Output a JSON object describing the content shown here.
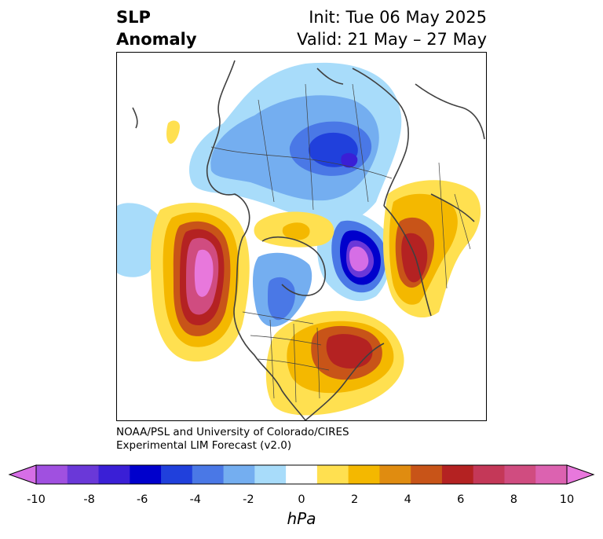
{
  "title": {
    "left_line1": "SLP",
    "left_line2": "Anomaly",
    "init": "Init: Tue 06 May 2025",
    "valid": "Valid: 21 May – 27 May"
  },
  "credit": {
    "line1": "NOAA/PSL and University of Colorado/CIRES",
    "line2": "Experimental LIM Forecast (v2.0)"
  },
  "colorbar": {
    "unit": "hPa",
    "tick_labels": [
      "-10",
      "-8",
      "-6",
      "-4",
      "-2",
      "0",
      "2",
      "4",
      "6",
      "8",
      "10"
    ],
    "colors": [
      "#d66ee6",
      "#a050e0",
      "#6a38d8",
      "#3a1fd6",
      "#0000cc",
      "#2040dc",
      "#4a78e6",
      "#74aef0",
      "#a8dcfa",
      "#ffffff",
      "#ffe050",
      "#f4b800",
      "#e08c10",
      "#c85418",
      "#b42222",
      "#c43858",
      "#d04c80",
      "#dc62b0",
      "#e878dc"
    ]
  },
  "colors": {
    "coast": "#404040",
    "border": "#404040"
  }
}
